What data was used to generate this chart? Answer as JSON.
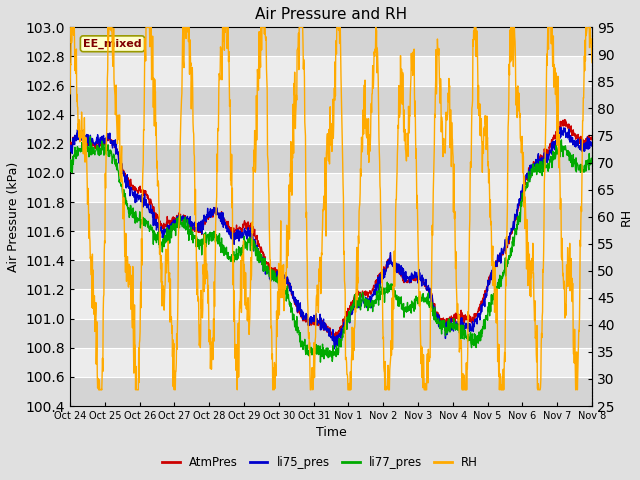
{
  "title": "Air Pressure and RH",
  "xlabel": "Time",
  "ylabel_left": "Air Pressure (kPa)",
  "ylabel_right": "RH",
  "ylim_left": [
    100.4,
    103.0
  ],
  "ylim_right": [
    25,
    95
  ],
  "yticks_left": [
    100.4,
    100.6,
    100.8,
    101.0,
    101.2,
    101.4,
    101.6,
    101.8,
    102.0,
    102.2,
    102.4,
    102.6,
    102.8,
    103.0
  ],
  "yticks_right": [
    25,
    30,
    35,
    40,
    45,
    50,
    55,
    60,
    65,
    70,
    75,
    80,
    85,
    90,
    95
  ],
  "xtick_labels": [
    "Oct 24",
    "Oct 25",
    "Oct 26",
    "Oct 27",
    "Oct 28",
    "Oct 29",
    "Oct 30",
    "Oct 31",
    "Nov 1",
    "Nov 2",
    "Nov 3",
    "Nov 4",
    "Nov 5",
    "Nov 6",
    "Nov 7",
    "Nov 8"
  ],
  "color_atm": "#cc0000",
  "color_li75": "#0000cc",
  "color_li77": "#00aa00",
  "color_rh": "#ffaa00",
  "legend_label_box": "EE_mixed",
  "legend_box_facecolor": "#ffffcc",
  "legend_box_edgecolor": "#999900",
  "legend_labels": [
    "AtmPres",
    "li75_pres",
    "li77_pres",
    "RH"
  ],
  "bg_color": "#e0e0e0",
  "plot_bg_color": "#ececec",
  "grid_color": "#ffffff",
  "n_points": 1500
}
